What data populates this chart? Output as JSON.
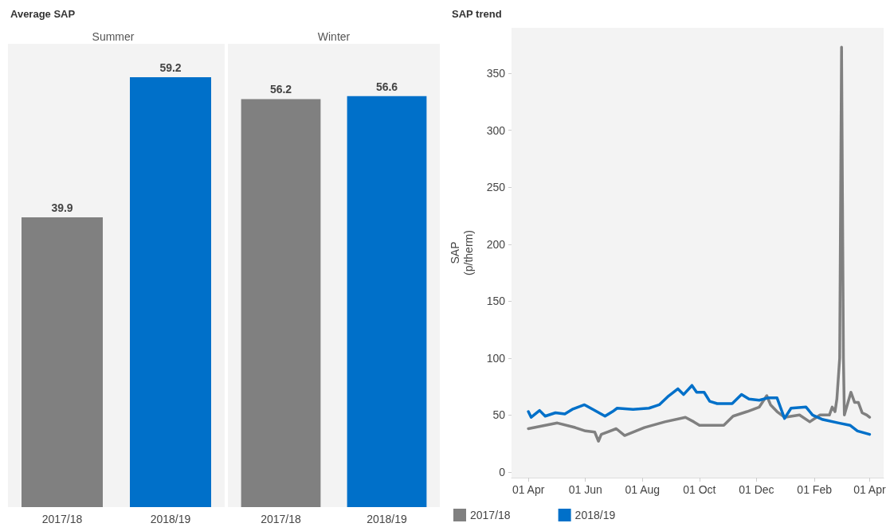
{
  "chart_data": [
    {
      "type": "bar",
      "title": "Average SAP",
      "subtitle": "Summer",
      "categories": [
        "2017/18",
        "2018/19"
      ],
      "values": [
        39.9,
        59.2
      ],
      "colors": [
        "#808080",
        "#0070c9"
      ],
      "data_labels": true
    },
    {
      "type": "bar",
      "subtitle": "Winter",
      "categories": [
        "2017/18",
        "2018/19"
      ],
      "values": [
        56.2,
        56.6
      ],
      "colors": [
        "#808080",
        "#0070c9"
      ],
      "data_labels": true
    },
    {
      "type": "line",
      "title": "SAP trend",
      "ylabel": "SAP\n(p/therm)",
      "xlim": [
        "2018-03-14",
        "2019-04-16"
      ],
      "ylim": [
        -5,
        390
      ],
      "xticks": [
        {
          "value": "2018-04-01",
          "label": "01 Apr"
        },
        {
          "value": "2018-06-01",
          "label": "01 Jun"
        },
        {
          "value": "2018-08-01",
          "label": "01 Aug"
        },
        {
          "value": "2018-10-01",
          "label": "01 Oct"
        },
        {
          "value": "2018-12-01",
          "label": "01 Dec"
        },
        {
          "value": "2019-02-01",
          "label": "01 Feb"
        },
        {
          "value": "2019-04-01",
          "label": "01 Apr"
        }
      ],
      "yticks": [
        0,
        50,
        100,
        150,
        200,
        250,
        300,
        350
      ],
      "grid": false,
      "legend": "bottom",
      "marker": "none",
      "line_style": "solid",
      "series": [
        {
          "name": "2017/18",
          "color": "#808080",
          "x": [
            "2018-04-01",
            "2018-05-02",
            "2018-05-21",
            "2018-06-01",
            "2018-06-11",
            "2018-06-15",
            "2018-06-18",
            "2018-07-04",
            "2018-07-13",
            "2018-08-03",
            "2018-08-25",
            "2018-09-16",
            "2018-09-25",
            "2018-10-01",
            "2018-10-14",
            "2018-10-27",
            "2018-11-06",
            "2018-11-21",
            "2018-12-04",
            "2018-12-12",
            "2018-12-16",
            "2018-12-23",
            "2018-12-31",
            "2019-01-16",
            "2019-01-27",
            "2019-02-07",
            "2019-02-17",
            "2019-02-20",
            "2019-02-23",
            "2019-02-25",
            "2019-02-28",
            "2019-03-02",
            "2019-03-04",
            "2019-03-05",
            "2019-03-12",
            "2019-03-16",
            "2019-03-20",
            "2019-03-24",
            "2019-03-29",
            "2019-04-01"
          ],
          "values": [
            38,
            43,
            39,
            36,
            35,
            27,
            33,
            38,
            32,
            39,
            44,
            48,
            44,
            41,
            41,
            41,
            49,
            53,
            57,
            67,
            59,
            53,
            48,
            50,
            44,
            50,
            50,
            57,
            53,
            64,
            100,
            373,
            100,
            50,
            70,
            61,
            61,
            52,
            50,
            48
          ]
        },
        {
          "name": "2018/19",
          "color": "#0070c9",
          "x": [
            "2018-04-01",
            "2018-04-04",
            "2018-04-13",
            "2018-04-19",
            "2018-04-30",
            "2018-05-10",
            "2018-05-18",
            "2018-05-31",
            "2018-06-09",
            "2018-06-22",
            "2018-06-30",
            "2018-07-05",
            "2018-07-22",
            "2018-08-08",
            "2018-08-19",
            "2018-08-28",
            "2018-09-08",
            "2018-09-14",
            "2018-09-22",
            "2018-09-23",
            "2018-09-28",
            "2018-10-06",
            "2018-10-12",
            "2018-10-20",
            "2018-11-05",
            "2018-11-15",
            "2018-11-23",
            "2018-12-04",
            "2018-12-13",
            "2018-12-23",
            "2018-12-31",
            "2019-01-07",
            "2019-01-23",
            "2019-01-30",
            "2019-02-10",
            "2019-02-27",
            "2019-03-11",
            "2019-03-19",
            "2019-04-01"
          ],
          "values": [
            53,
            48,
            54,
            49,
            52,
            51,
            55,
            59,
            55,
            49,
            53,
            56,
            55,
            56,
            59,
            66,
            73,
            68,
            75,
            76,
            70,
            70,
            62,
            60,
            60,
            68,
            64,
            63,
            65,
            65,
            47,
            56,
            57,
            50,
            46,
            43,
            41,
            36,
            33
          ]
        }
      ]
    }
  ]
}
